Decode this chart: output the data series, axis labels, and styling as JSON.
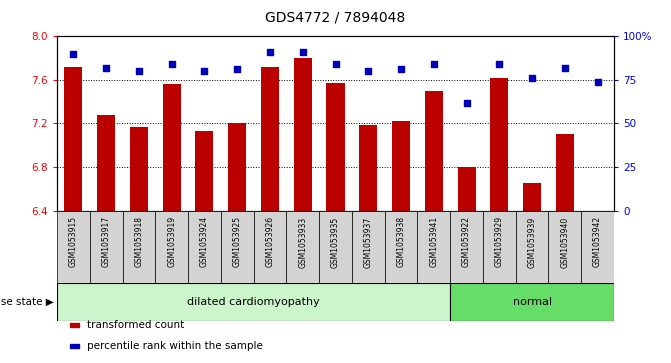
{
  "title": "GDS4772 / 7894048",
  "samples": [
    "GSM1053915",
    "GSM1053917",
    "GSM1053918",
    "GSM1053919",
    "GSM1053924",
    "GSM1053925",
    "GSM1053926",
    "GSM1053933",
    "GSM1053935",
    "GSM1053937",
    "GSM1053938",
    "GSM1053941",
    "GSM1053922",
    "GSM1053929",
    "GSM1053939",
    "GSM1053940",
    "GSM1053942"
  ],
  "transformed_counts": [
    7.72,
    7.28,
    7.17,
    7.56,
    7.13,
    7.2,
    7.72,
    7.8,
    7.57,
    7.19,
    7.22,
    7.5,
    6.8,
    7.62,
    6.65,
    7.1,
    6.4
  ],
  "percentile_ranks": [
    90,
    82,
    80,
    84,
    80,
    81,
    91,
    91,
    84,
    80,
    81,
    84,
    62,
    84,
    76,
    82,
    74
  ],
  "disease_groups": [
    {
      "label": "dilated cardiomyopathy",
      "start": 0,
      "end": 12,
      "color": "#ccf5cc"
    },
    {
      "label": "normal",
      "start": 12,
      "end": 17,
      "color": "#66dd66"
    }
  ],
  "bar_color": "#bb0000",
  "dot_color": "#0000bb",
  "ylim_left": [
    6.4,
    8.0
  ],
  "ylim_right": [
    0,
    100
  ],
  "yticks_left": [
    6.4,
    6.8,
    7.2,
    7.6,
    8.0
  ],
  "yticks_right": [
    0,
    25,
    50,
    75,
    100
  ],
  "ytick_labels_right": [
    "0",
    "25",
    "50",
    "75",
    "100%"
  ],
  "grid_lines": [
    7.6,
    7.2,
    6.8
  ],
  "bar_bottom": 6.4,
  "tick_area_color": "#d3d3d3",
  "legend_items": [
    {
      "color": "#bb0000",
      "label": "transformed count"
    },
    {
      "color": "#0000bb",
      "label": "percentile rank within the sample"
    }
  ]
}
